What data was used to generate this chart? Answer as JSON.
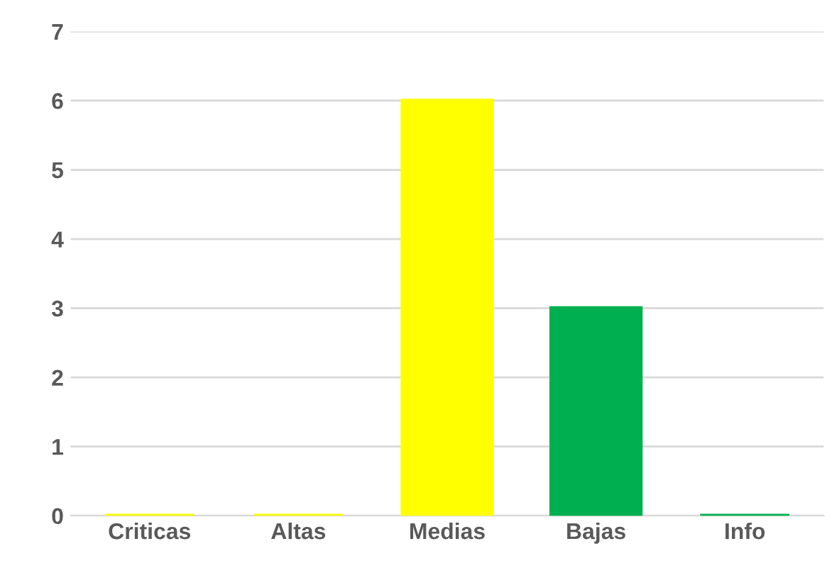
{
  "chart_data": {
    "type": "bar",
    "categories": [
      "Criticas",
      "Altas",
      "Medias",
      "Bajas",
      "Info"
    ],
    "values": [
      0,
      0,
      6,
      3,
      0
    ],
    "colors": [
      "#ffff00",
      "#ffff00",
      "#ffff00",
      "#00b050",
      "#00b050"
    ],
    "ylim": [
      0,
      7
    ],
    "yticks": [
      0,
      1,
      2,
      3,
      4,
      5,
      6,
      7
    ],
    "grid": "y",
    "legend": false
  }
}
